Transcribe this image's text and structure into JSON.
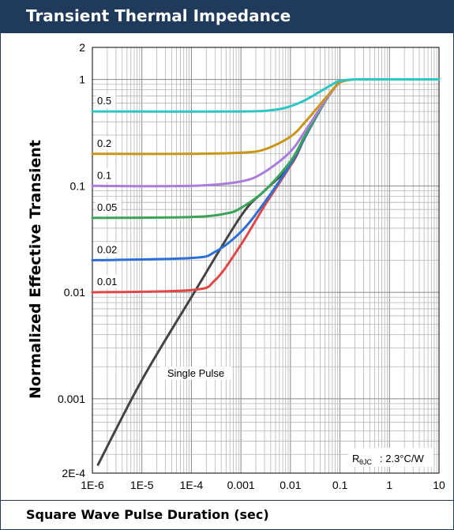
{
  "title": "Transient Thermal Impedance",
  "chart_data": {
    "type": "line",
    "xlabel": "Square Wave Pulse Duration (sec)",
    "ylabel": "Normalized Effective Transient",
    "x_scale": "log",
    "y_scale": "log",
    "xlim": [
      1e-06,
      10
    ],
    "ylim": [
      0.0002,
      2
    ],
    "grid": true,
    "x_ticks": [
      "1E-6",
      "1E-5",
      "1E-4",
      "0.001",
      "0.01",
      "0.1",
      "1",
      "10"
    ],
    "y_ticks": [
      "2E-4",
      "0.001",
      "0.01",
      "0.1",
      "1",
      "2"
    ],
    "annotation": {
      "symbol": "R",
      "subscript": "θJC",
      "value": ": 2.3°C/W"
    },
    "series": [
      {
        "name": "0.5",
        "color": "#2cc6c6",
        "x": [
          1e-06,
          0.001,
          0.005,
          0.01,
          0.02,
          0.05,
          0.08,
          0.1,
          0.2,
          1,
          10
        ],
        "y": [
          0.5,
          0.5,
          0.52,
          0.56,
          0.64,
          0.82,
          0.93,
          0.97,
          1,
          1,
          1
        ]
      },
      {
        "name": "0.2",
        "color": "#c9961a",
        "x": [
          1e-06,
          0.0001,
          0.001,
          0.003,
          0.01,
          0.02,
          0.05,
          0.08,
          0.1,
          0.2,
          1,
          10
        ],
        "y": [
          0.2,
          0.2,
          0.205,
          0.22,
          0.29,
          0.4,
          0.66,
          0.85,
          0.94,
          1,
          1,
          1
        ]
      },
      {
        "name": "0.1",
        "color": "#a97ddb",
        "x": [
          1e-06,
          0.0001,
          0.001,
          0.003,
          0.01,
          0.02,
          0.05,
          0.08,
          0.1
        ],
        "y": [
          0.1,
          0.1,
          0.11,
          0.135,
          0.21,
          0.33,
          0.63,
          0.85,
          0.94
        ]
      },
      {
        "name": "0.05",
        "color": "#3aa35a",
        "x": [
          1e-06,
          0.0001,
          0.0005,
          0.001,
          0.003,
          0.01,
          0.02,
          0.05,
          0.08,
          0.1
        ],
        "y": [
          0.05,
          0.051,
          0.055,
          0.062,
          0.09,
          0.17,
          0.3,
          0.62,
          0.85,
          0.94
        ]
      },
      {
        "name": "0.02",
        "color": "#2a6fd6",
        "x": [
          1e-06,
          0.0001,
          0.0003,
          0.001,
          0.003,
          0.01,
          0.02,
          0.05,
          0.08,
          0.1
        ],
        "y": [
          0.02,
          0.021,
          0.024,
          0.037,
          0.07,
          0.16,
          0.29,
          0.62,
          0.85,
          0.94
        ]
      },
      {
        "name": "0.01",
        "color": "#e04848",
        "x": [
          1e-06,
          0.0001,
          0.0003,
          0.001,
          0.003,
          0.01,
          0.02,
          0.05,
          0.08,
          0.1
        ],
        "y": [
          0.01,
          0.0105,
          0.013,
          0.028,
          0.065,
          0.155,
          0.29,
          0.62,
          0.85,
          0.94
        ]
      },
      {
        "name": "Single Pulse",
        "color": "#444444",
        "x": [
          1.3e-06,
          1e-05,
          0.0001,
          0.001,
          0.003,
          0.01,
          0.02,
          0.05,
          0.08,
          0.1
        ],
        "y": [
          0.00024,
          0.0015,
          0.009,
          0.052,
          0.09,
          0.155,
          0.29,
          0.62,
          0.85,
          0.94
        ]
      }
    ]
  }
}
